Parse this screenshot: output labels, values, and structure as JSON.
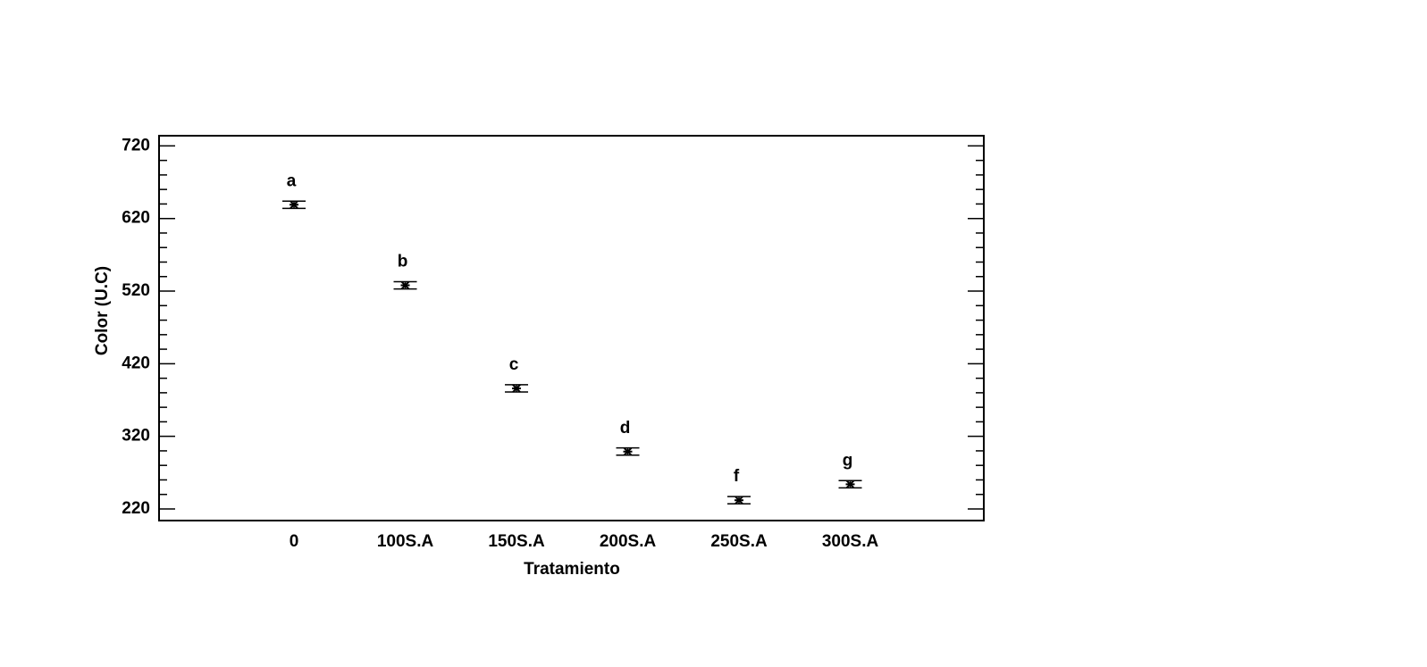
{
  "chart_data": {
    "type": "errorbar",
    "xlabel": "Tratamiento",
    "ylabel": "Color (U.C)",
    "categories": [
      "0",
      "100S.A",
      "150S.A",
      "200S.A",
      "250S.A",
      "300S.A"
    ],
    "values": [
      639,
      528,
      386,
      299,
      232,
      254
    ],
    "errors": [
      5,
      5,
      5,
      5,
      5,
      5
    ],
    "annotations": [
      "a",
      "b",
      "c",
      "d",
      "f",
      "g"
    ],
    "color": "#000000",
    "ylim": [
      204,
      734
    ],
    "yticks": [
      220,
      320,
      420,
      520,
      620,
      720
    ],
    "yticks_minor": [
      240,
      260,
      280,
      300,
      340,
      360,
      380,
      400,
      440,
      460,
      480,
      500,
      540,
      560,
      580,
      600,
      640,
      660,
      680,
      700
    ]
  }
}
